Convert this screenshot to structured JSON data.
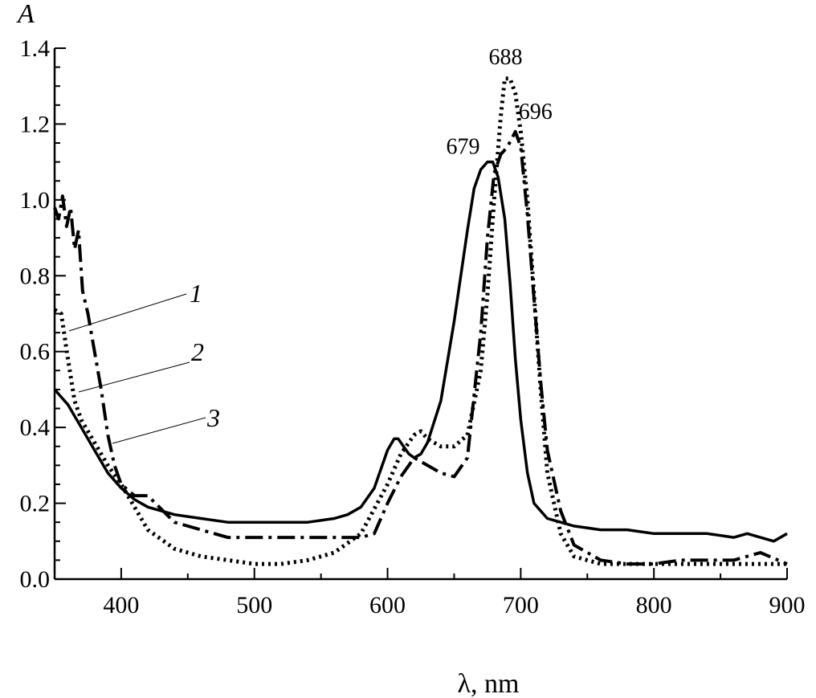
{
  "chart_data": {
    "type": "line",
    "ylabel": "A",
    "xlabel": "λ, nm",
    "xlim": [
      350,
      900
    ],
    "ylim": [
      0.0,
      1.4
    ],
    "x_ticks": [
      400,
      500,
      600,
      700,
      800,
      900
    ],
    "y_ticks": [
      0.0,
      0.2,
      0.4,
      0.6,
      0.8,
      1.0,
      1.2,
      1.4
    ],
    "y_tick_labels": [
      "0.0",
      "0.2",
      "0.4",
      "0.6",
      "0.8",
      "1.0",
      "1.2",
      "1.4"
    ],
    "x_tick_labels": [
      "400",
      "500",
      "600",
      "700",
      "800",
      "900"
    ],
    "grid": false,
    "series": [
      {
        "name": "1",
        "style": "dotted",
        "color": "#000000",
        "x": [
          350,
          355,
          360,
          365,
          370,
          380,
          390,
          400,
          410,
          420,
          440,
          460,
          480,
          500,
          520,
          540,
          560,
          580,
          600,
          610,
          620,
          625,
          630,
          640,
          650,
          660,
          670,
          675,
          680,
          685,
          688,
          692,
          696,
          700,
          705,
          710,
          715,
          720,
          730,
          740,
          760,
          780,
          800,
          820,
          840,
          860,
          880,
          900
        ],
        "y": [
          0.71,
          0.7,
          0.58,
          0.47,
          0.42,
          0.36,
          0.3,
          0.25,
          0.19,
          0.13,
          0.08,
          0.06,
          0.05,
          0.04,
          0.04,
          0.05,
          0.07,
          0.12,
          0.25,
          0.33,
          0.38,
          0.39,
          0.37,
          0.35,
          0.35,
          0.38,
          0.55,
          0.75,
          1.0,
          1.22,
          1.32,
          1.32,
          1.28,
          1.18,
          1.0,
          0.75,
          0.5,
          0.28,
          0.12,
          0.06,
          0.04,
          0.04,
          0.04,
          0.04,
          0.04,
          0.04,
          0.04,
          0.04
        ]
      },
      {
        "name": "2",
        "style": "dash-dot",
        "color": "#000000",
        "x": [
          350,
          353,
          356,
          359,
          362,
          365,
          368,
          371,
          375,
          380,
          385,
          390,
          395,
          400,
          410,
          420,
          440,
          460,
          480,
          500,
          520,
          540,
          560,
          580,
          590,
          600,
          610,
          620,
          630,
          640,
          650,
          660,
          670,
          675,
          680,
          685,
          690,
          696,
          700,
          705,
          710,
          715,
          720,
          730,
          740,
          760,
          780,
          800,
          820,
          840,
          860,
          880,
          900
        ],
        "y": [
          0.98,
          0.95,
          1.01,
          0.93,
          0.98,
          0.87,
          0.92,
          0.76,
          0.7,
          0.6,
          0.5,
          0.38,
          0.3,
          0.25,
          0.22,
          0.22,
          0.15,
          0.13,
          0.11,
          0.11,
          0.11,
          0.11,
          0.11,
          0.11,
          0.12,
          0.2,
          0.27,
          0.32,
          0.3,
          0.28,
          0.27,
          0.32,
          0.65,
          0.9,
          1.07,
          1.12,
          1.14,
          1.18,
          1.14,
          0.96,
          0.74,
          0.52,
          0.34,
          0.18,
          0.09,
          0.05,
          0.04,
          0.04,
          0.05,
          0.05,
          0.05,
          0.07,
          0.04
        ]
      },
      {
        "name": "3",
        "style": "solid",
        "color": "#000000",
        "x": [
          350,
          355,
          360,
          365,
          370,
          380,
          390,
          400,
          410,
          420,
          440,
          460,
          480,
          500,
          520,
          540,
          560,
          570,
          580,
          590,
          600,
          605,
          608,
          612,
          616,
          620,
          625,
          630,
          640,
          650,
          660,
          665,
          670,
          675,
          679,
          683,
          688,
          692,
          696,
          700,
          705,
          710,
          720,
          730,
          740,
          760,
          780,
          800,
          820,
          840,
          860,
          870,
          880,
          890,
          900
        ],
        "y": [
          0.5,
          0.48,
          0.46,
          0.43,
          0.4,
          0.34,
          0.28,
          0.24,
          0.21,
          0.19,
          0.17,
          0.16,
          0.15,
          0.15,
          0.15,
          0.15,
          0.16,
          0.17,
          0.19,
          0.24,
          0.34,
          0.37,
          0.37,
          0.35,
          0.33,
          0.32,
          0.33,
          0.36,
          0.47,
          0.68,
          0.92,
          1.03,
          1.08,
          1.1,
          1.1,
          1.06,
          0.95,
          0.78,
          0.58,
          0.42,
          0.28,
          0.2,
          0.16,
          0.15,
          0.14,
          0.13,
          0.13,
          0.12,
          0.12,
          0.12,
          0.11,
          0.12,
          0.11,
          0.1,
          0.12
        ]
      }
    ],
    "annotations": [
      {
        "text": "679",
        "x": 679,
        "y": 1.1
      },
      {
        "text": "688",
        "x": 688,
        "y": 1.32
      },
      {
        "text": "696",
        "x": 696,
        "y": 1.18
      }
    ],
    "curve_labels": [
      "1",
      "2",
      "3"
    ]
  }
}
